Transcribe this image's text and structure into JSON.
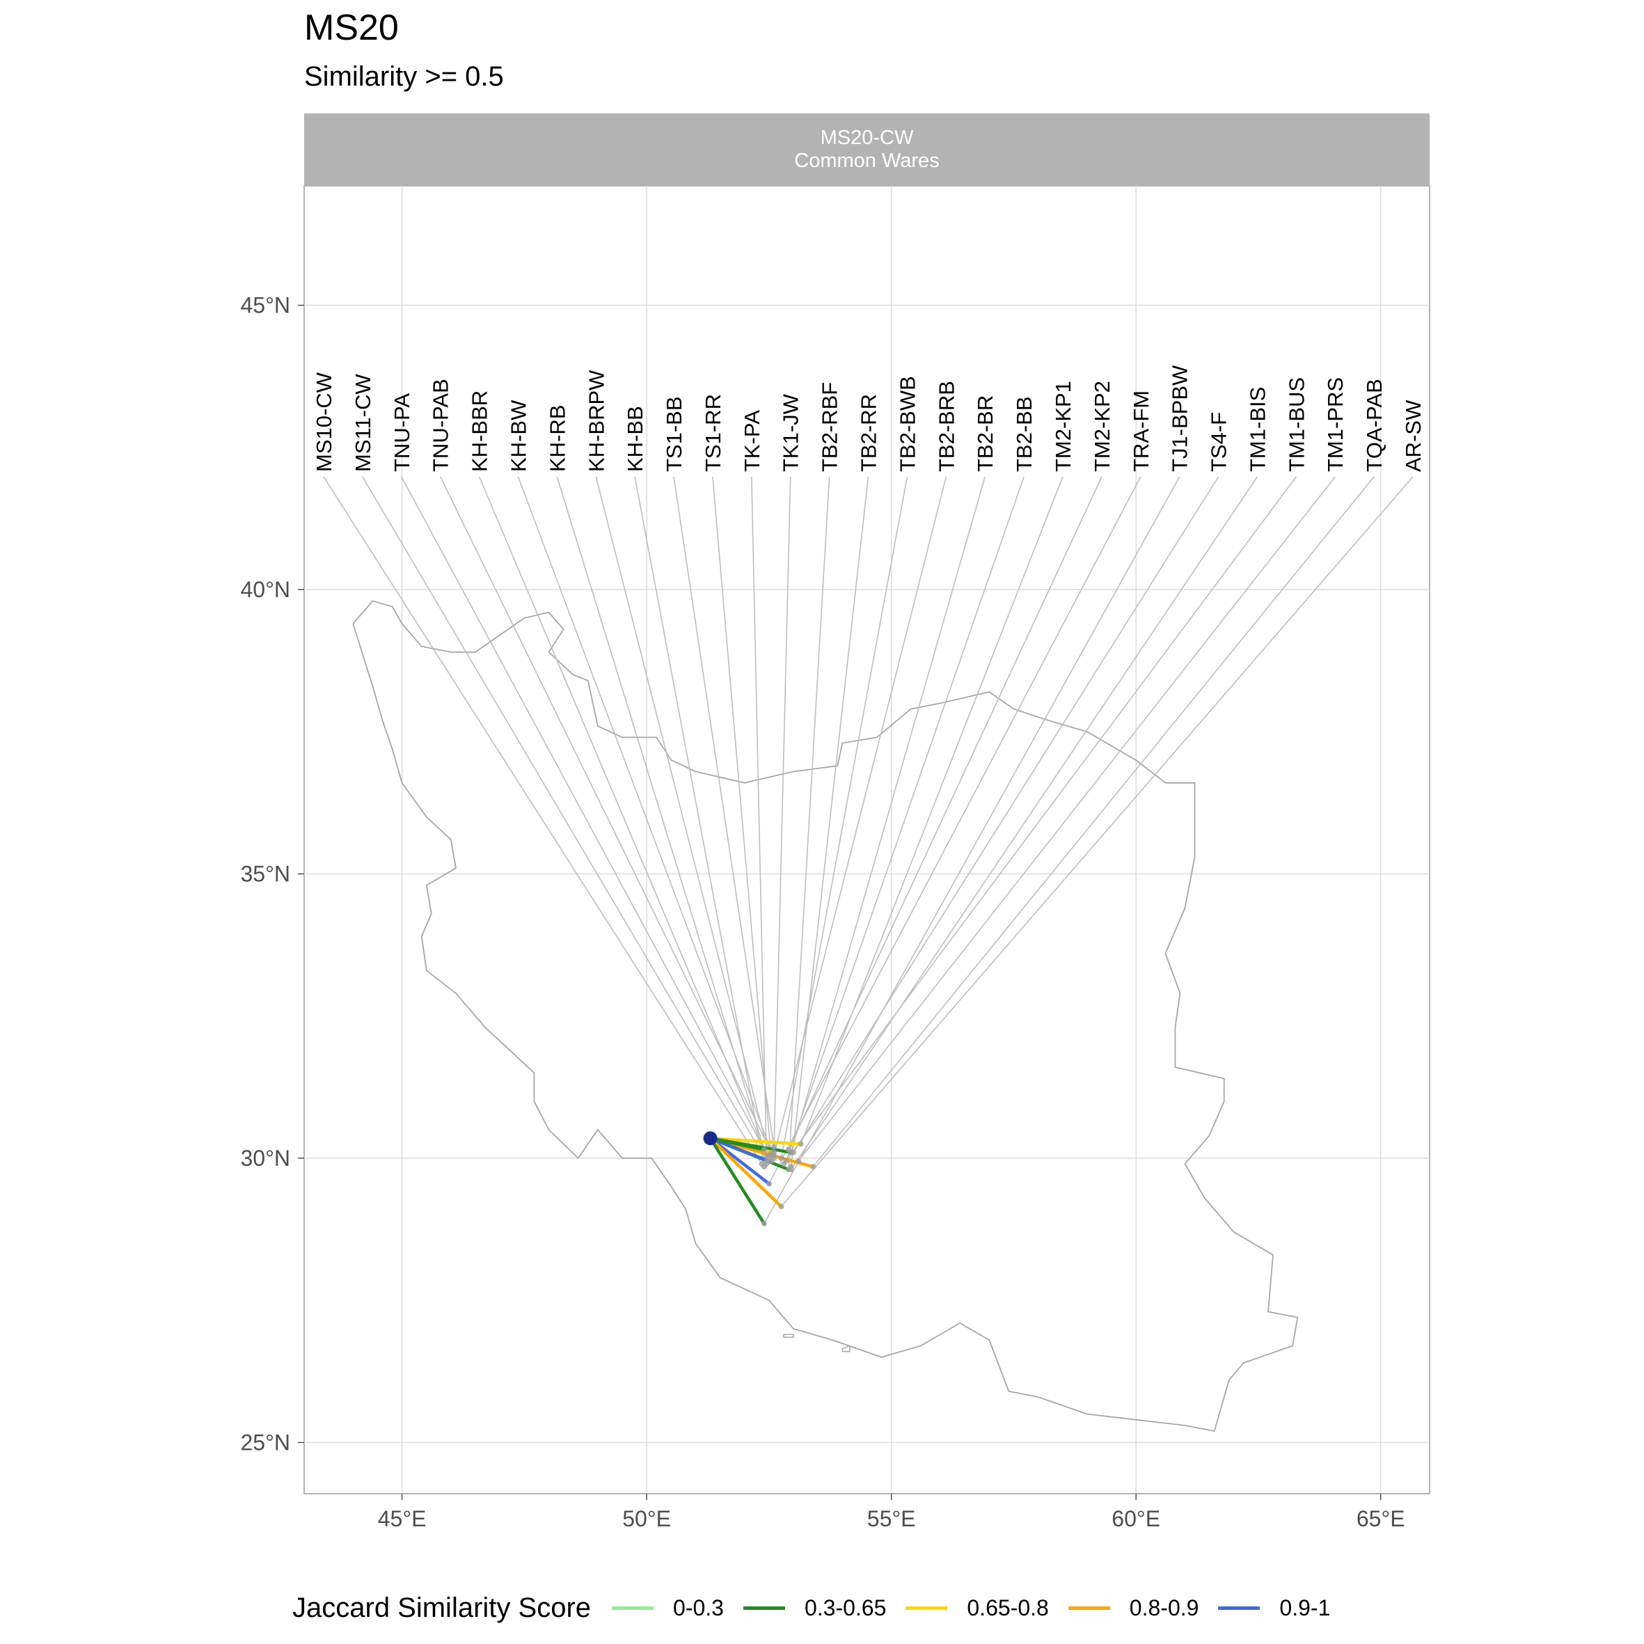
{
  "title": "MS20",
  "subtitle": "Similarity >= 0.5",
  "facet": {
    "line1": "MS20-CW",
    "line2": "Common Wares"
  },
  "legend": {
    "title": "Jaccard Similarity Score",
    "items": [
      {
        "label": "0-0.3",
        "color": "#90ee90"
      },
      {
        "label": "0.3-0.65",
        "color": "#228b22"
      },
      {
        "label": "0.65-0.8",
        "color": "#ffd700"
      },
      {
        "label": "0.8-0.9",
        "color": "#ffa500"
      },
      {
        "label": "0.9-1",
        "color": "#4169e1"
      }
    ]
  },
  "chart_data": {
    "type": "map",
    "facet": "MS20-CW Common Wares",
    "xlim": [
      43,
      66
    ],
    "ylim": [
      24.1,
      47.1
    ],
    "x_ticks": [
      {
        "value": 45,
        "label": "45°E"
      },
      {
        "value": 50,
        "label": "50°E"
      },
      {
        "value": 55,
        "label": "55°E"
      },
      {
        "value": 60,
        "label": "60°E"
      },
      {
        "value": 65,
        "label": "65°E"
      }
    ],
    "y_ticks": [
      {
        "value": 25,
        "label": "25°N"
      },
      {
        "value": 30,
        "label": "30°N"
      },
      {
        "value": 35,
        "label": "35°N"
      },
      {
        "value": 40,
        "label": "40°N"
      },
      {
        "value": 45,
        "label": "45°N"
      }
    ],
    "grid": true,
    "origin": {
      "lon": 51.3,
      "lat": 30.35
    },
    "site_labels": [
      "MS10-CW",
      "MS11-CW",
      "TNU-PA",
      "TNU-PAB",
      "KH-BBR",
      "KH-BW",
      "KH-RB",
      "KH-BRPW",
      "KH-BB",
      "TS1-BB",
      "TS1-RR",
      "TK-PA",
      "TK1-JW",
      "TB2-RBF",
      "TB2-RR",
      "TB2-BWB",
      "TB2-BRB",
      "TB2-BR",
      "TB2-BB",
      "TM2-KP1",
      "TM2-KP2",
      "TRA-FM",
      "TJ1-BPBW",
      "TS4-F",
      "TM1-BIS",
      "TM1-BUS",
      "TM1-PRS",
      "TQA-PAB",
      "AR-SW"
    ],
    "site_points": [
      {
        "lon": 52.35,
        "lat": 29.9
      },
      {
        "lon": 52.45,
        "lat": 29.95
      },
      {
        "lon": 52.5,
        "lat": 30.0
      },
      {
        "lon": 52.55,
        "lat": 30.1
      },
      {
        "lon": 52.45,
        "lat": 30.05
      },
      {
        "lon": 52.6,
        "lat": 30.0
      },
      {
        "lon": 52.4,
        "lat": 30.15
      },
      {
        "lon": 52.5,
        "lat": 30.05
      },
      {
        "lon": 52.4,
        "lat": 29.85
      },
      {
        "lon": 52.6,
        "lat": 30.2
      },
      {
        "lon": 52.55,
        "lat": 29.95
      },
      {
        "lon": 52.45,
        "lat": 29.9
      },
      {
        "lon": 52.6,
        "lat": 30.1
      },
      {
        "lon": 52.9,
        "lat": 29.8
      },
      {
        "lon": 52.95,
        "lat": 29.85
      },
      {
        "lon": 52.75,
        "lat": 30.0
      },
      {
        "lon": 52.6,
        "lat": 30.05
      },
      {
        "lon": 52.95,
        "lat": 30.1
      },
      {
        "lon": 52.85,
        "lat": 29.95
      },
      {
        "lon": 53.15,
        "lat": 30.25
      },
      {
        "lon": 52.9,
        "lat": 30.15
      },
      {
        "lon": 52.5,
        "lat": 29.55
      },
      {
        "lon": 52.4,
        "lat": 28.85
      },
      {
        "lon": 53.0,
        "lat": 30.1
      },
      {
        "lon": 52.95,
        "lat": 29.8
      },
      {
        "lon": 52.8,
        "lat": 29.9
      },
      {
        "lon": 53.1,
        "lat": 29.95
      },
      {
        "lon": 53.4,
        "lat": 29.85
      },
      {
        "lon": 52.75,
        "lat": 29.15
      }
    ],
    "connections": [
      {
        "lon": 53.15,
        "lat": 30.25,
        "score": "0.65-0.8"
      },
      {
        "lon": 52.95,
        "lat": 30.1,
        "score": "0.3-0.65"
      },
      {
        "lon": 52.6,
        "lat": 30.1,
        "score": "0.65-0.8"
      },
      {
        "lon": 52.9,
        "lat": 29.8,
        "score": "0.3-0.65"
      },
      {
        "lon": 52.5,
        "lat": 29.55,
        "score": "0.9-1"
      },
      {
        "lon": 53.4,
        "lat": 29.85,
        "score": "0.8-0.9"
      },
      {
        "lon": 52.75,
        "lat": 29.15,
        "score": "0.8-0.9"
      },
      {
        "lon": 52.4,
        "lat": 28.85,
        "score": "0.3-0.65"
      },
      {
        "lon": 52.5,
        "lat": 29.95,
        "score": "0.9-1"
      },
      {
        "lon": 52.4,
        "lat": 30.15,
        "score": "0.3-0.65"
      }
    ],
    "outline": [
      [
        44.0,
        39.4
      ],
      [
        44.4,
        39.8
      ],
      [
        44.8,
        39.7
      ],
      [
        45.0,
        39.4
      ],
      [
        45.4,
        39.0
      ],
      [
        46.0,
        38.9
      ],
      [
        46.5,
        38.9
      ],
      [
        47.0,
        39.2
      ],
      [
        47.5,
        39.5
      ],
      [
        48.0,
        39.6
      ],
      [
        48.3,
        39.3
      ],
      [
        48.0,
        38.9
      ],
      [
        48.5,
        38.5
      ],
      [
        48.8,
        38.4
      ],
      [
        48.9,
        38.0
      ],
      [
        49.0,
        37.6
      ],
      [
        49.5,
        37.4
      ],
      [
        50.2,
        37.4
      ],
      [
        50.5,
        37.0
      ],
      [
        51.0,
        36.8
      ],
      [
        52.0,
        36.6
      ],
      [
        53.0,
        36.8
      ],
      [
        53.9,
        36.9
      ],
      [
        54.0,
        37.3
      ],
      [
        54.7,
        37.4
      ],
      [
        55.4,
        37.9
      ],
      [
        56.0,
        38.0
      ],
      [
        57.0,
        38.2
      ],
      [
        57.5,
        37.9
      ],
      [
        58.2,
        37.7
      ],
      [
        59.0,
        37.5
      ],
      [
        60.0,
        37.0
      ],
      [
        60.6,
        36.6
      ],
      [
        61.2,
        36.6
      ],
      [
        61.2,
        35.8
      ],
      [
        61.2,
        35.3
      ],
      [
        61.0,
        34.4
      ],
      [
        60.6,
        33.6
      ],
      [
        60.9,
        32.9
      ],
      [
        60.8,
        32.3
      ],
      [
        60.8,
        31.6
      ],
      [
        61.8,
        31.4
      ],
      [
        61.8,
        31.0
      ],
      [
        61.5,
        30.4
      ],
      [
        61.0,
        29.9
      ],
      [
        61.4,
        29.3
      ],
      [
        62.0,
        28.7
      ],
      [
        62.8,
        28.3
      ],
      [
        62.7,
        27.3
      ],
      [
        63.3,
        27.2
      ],
      [
        63.2,
        26.7
      ],
      [
        62.2,
        26.4
      ],
      [
        61.9,
        26.1
      ],
      [
        61.6,
        25.2
      ],
      [
        61.0,
        25.3
      ],
      [
        60.0,
        25.4
      ],
      [
        59.0,
        25.5
      ],
      [
        58.0,
        25.8
      ],
      [
        57.4,
        25.9
      ],
      [
        57.0,
        26.8
      ],
      [
        56.4,
        27.1
      ],
      [
        55.6,
        26.7
      ],
      [
        54.8,
        26.5
      ],
      [
        53.8,
        26.8
      ],
      [
        53.0,
        27.0
      ],
      [
        52.5,
        27.5
      ],
      [
        51.5,
        27.9
      ],
      [
        51.0,
        28.5
      ],
      [
        50.8,
        29.1
      ],
      [
        50.5,
        29.5
      ],
      [
        50.1,
        30.0
      ],
      [
        49.5,
        30.0
      ],
      [
        49.0,
        30.5
      ],
      [
        48.6,
        30.0
      ],
      [
        48.0,
        30.5
      ],
      [
        47.7,
        31.0
      ],
      [
        47.7,
        31.5
      ],
      [
        47.2,
        31.9
      ],
      [
        46.7,
        32.3
      ],
      [
        46.1,
        32.9
      ],
      [
        45.5,
        33.3
      ],
      [
        45.4,
        33.9
      ],
      [
        45.6,
        34.3
      ],
      [
        45.5,
        34.8
      ],
      [
        46.1,
        35.1
      ],
      [
        46.0,
        35.6
      ],
      [
        45.5,
        36.0
      ],
      [
        45.0,
        36.6
      ],
      [
        44.8,
        37.2
      ],
      [
        44.6,
        37.7
      ],
      [
        44.4,
        38.3
      ],
      [
        44.0,
        39.4
      ]
    ],
    "islands": [
      [
        [
          52.8,
          26.9
        ],
        [
          53.0,
          26.9
        ],
        [
          53.0,
          26.85
        ],
        [
          52.8,
          26.85
        ]
      ],
      [
        [
          54.0,
          26.65
        ],
        [
          54.15,
          26.7
        ],
        [
          54.15,
          26.6
        ],
        [
          54.0,
          26.6
        ]
      ]
    ]
  }
}
